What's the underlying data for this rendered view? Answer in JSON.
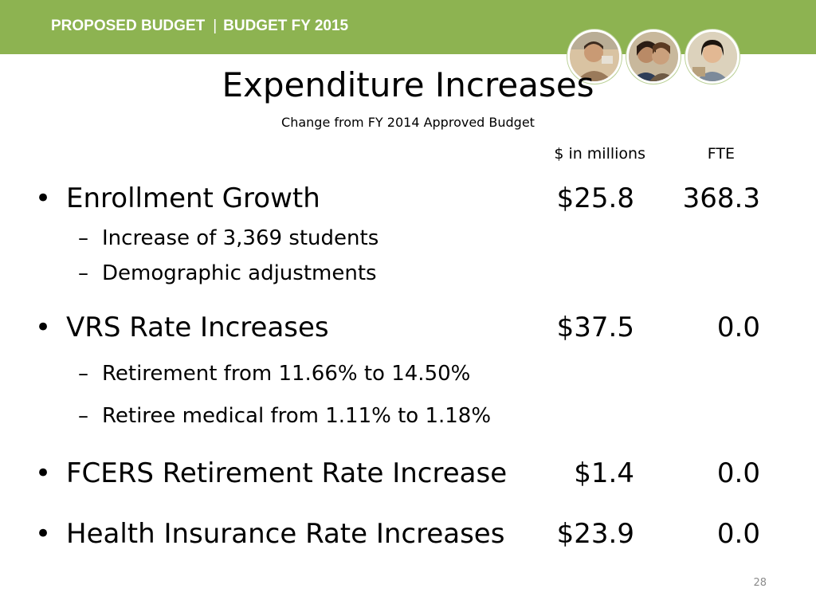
{
  "banner": {
    "left": "PROPOSED BUDGET",
    "separator": "|",
    "right": "BUDGET FY 2015",
    "color": "#8db351"
  },
  "title": "Expenditure Increases",
  "subtitle": "Change from FY 2014 Approved Budget",
  "columns": {
    "amount": "$ in millions",
    "fte": "FTE"
  },
  "items": [
    {
      "label": "Enrollment Growth",
      "amount": "$25.8",
      "fte": "368.3",
      "subitems": [
        "Increase of 3,369 students",
        "Demographic adjustments"
      ]
    },
    {
      "label": "VRS Rate Increases",
      "amount": "$37.5",
      "fte": "0.0",
      "subitems": [
        "Retirement from 11.66% to 14.50%",
        "Retiree medical from 1.11% to 1.18%"
      ]
    },
    {
      "label": "FCERS Retirement Rate Increase",
      "amount": "$1.4",
      "fte": "0.0",
      "subitems": []
    },
    {
      "label": "Health Insurance Rate Increases",
      "amount": "$23.9",
      "fte": "0.0",
      "subitems": []
    }
  ],
  "page_number": "28"
}
